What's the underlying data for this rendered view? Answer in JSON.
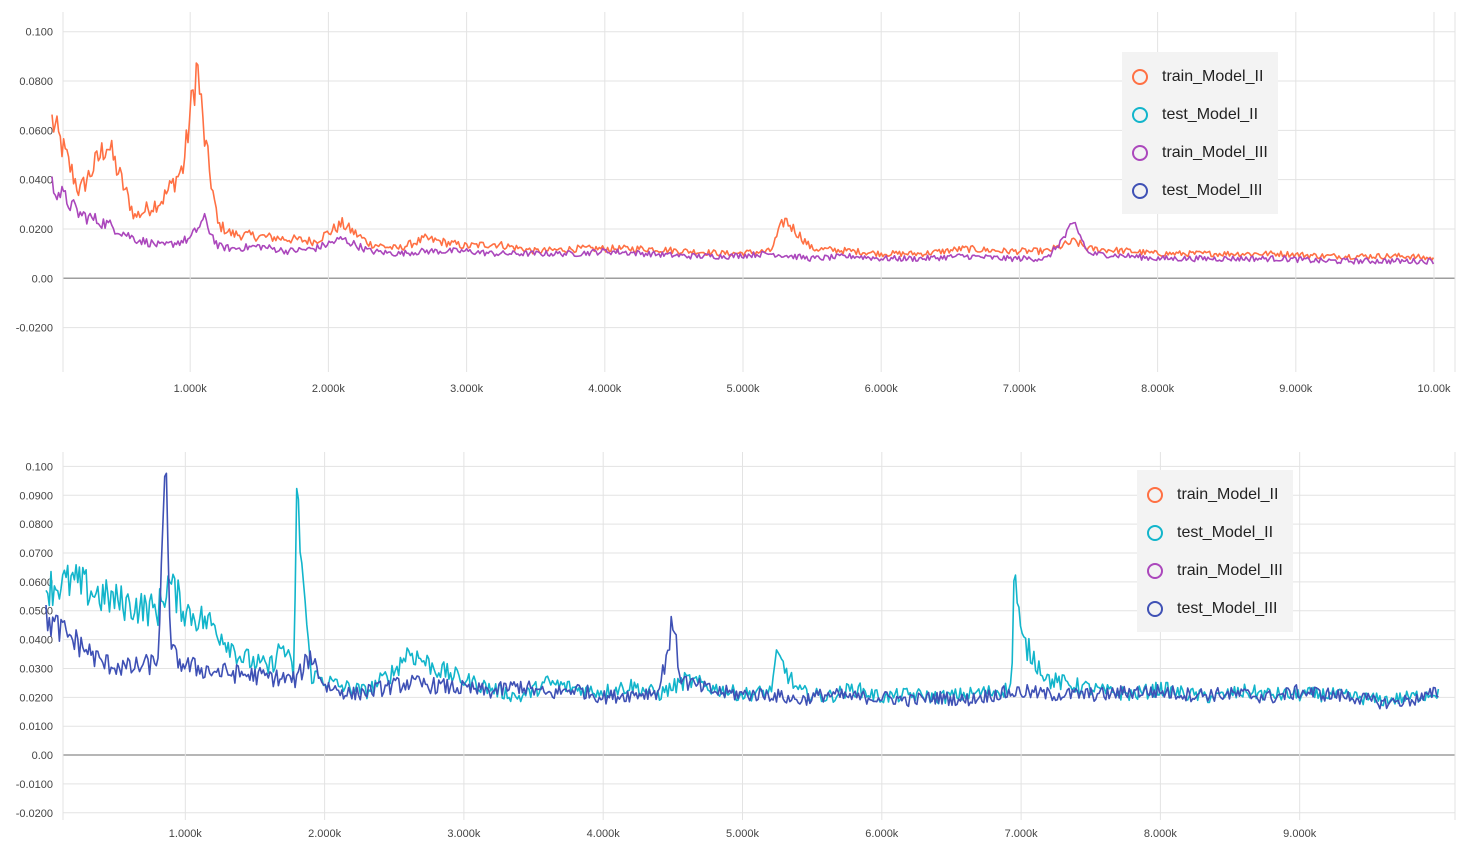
{
  "chart_data": [
    {
      "type": "line",
      "title": "",
      "xlabel": "",
      "ylabel": "",
      "xlim": [
        0,
        10000
      ],
      "ylim": [
        -0.038,
        0.108
      ],
      "grid": true,
      "legend_placement": "top-right",
      "x_ticks": [
        1000,
        2000,
        3000,
        4000,
        5000,
        6000,
        7000,
        8000,
        9000,
        10000
      ],
      "x_tick_labels": [
        "1.000k",
        "2.000k",
        "3.000k",
        "4.000k",
        "5.000k",
        "6.000k",
        "7.000k",
        "8.000k",
        "9.000k",
        "10.00k"
      ],
      "y_ticks": [
        0.1,
        0.08,
        0.06,
        0.04,
        0.02,
        0.0,
        -0.02
      ],
      "y_tick_labels": [
        "0.100",
        "0.0800",
        "0.0600",
        "0.0400",
        "0.0200",
        "0.00",
        "-0.0200"
      ],
      "legend": [
        {
          "name": "train_Model_II",
          "color": "#ff7043"
        },
        {
          "name": "test_Model_II",
          "color": "#12b5cb"
        },
        {
          "name": "train_Model_III",
          "color": "#ab47bc"
        },
        {
          "name": "test_Model_III",
          "color": "#3f51b5"
        }
      ],
      "series": [
        {
          "name": "train_Model_II",
          "color": "#ff7043",
          "x": [
            0,
            200,
            400,
            600,
            800,
            950,
            1050,
            1100,
            1200,
            1300,
            1500,
            1700,
            1900,
            2100,
            2300,
            2500,
            2700,
            3000,
            3200,
            3500,
            3800,
            4000,
            4300,
            4600,
            4900,
            5200,
            5300,
            5500,
            5800,
            6000,
            6300,
            6600,
            6900,
            7200,
            7400,
            7500,
            7800,
            8000,
            8300,
            8600,
            8900,
            9200,
            9500,
            9800,
            10000
          ],
          "y": [
            0.064,
            0.035,
            0.055,
            0.025,
            0.032,
            0.045,
            0.087,
            0.058,
            0.022,
            0.018,
            0.017,
            0.016,
            0.015,
            0.022,
            0.014,
            0.012,
            0.016,
            0.013,
            0.014,
            0.011,
            0.012,
            0.012,
            0.012,
            0.011,
            0.01,
            0.011,
            0.024,
            0.012,
            0.011,
            0.01,
            0.01,
            0.012,
            0.011,
            0.011,
            0.015,
            0.012,
            0.011,
            0.01,
            0.01,
            0.01,
            0.01,
            0.009,
            0.009,
            0.009,
            0.008
          ]
        },
        {
          "name": "train_Model_III",
          "color": "#ab47bc",
          "x": [
            0,
            200,
            400,
            600,
            800,
            1000,
            1100,
            1200,
            1300,
            1500,
            1700,
            1900,
            2100,
            2300,
            2500,
            2700,
            3000,
            3200,
            3500,
            3800,
            4000,
            4300,
            4600,
            4900,
            5200,
            5500,
            5800,
            6000,
            6300,
            6600,
            6900,
            7200,
            7400,
            7500,
            7800,
            8000,
            8300,
            8600,
            8900,
            9200,
            9500,
            9800,
            10000
          ],
          "y": [
            0.038,
            0.026,
            0.022,
            0.016,
            0.013,
            0.016,
            0.024,
            0.013,
            0.012,
            0.013,
            0.011,
            0.012,
            0.016,
            0.011,
            0.01,
            0.011,
            0.011,
            0.01,
            0.01,
            0.01,
            0.011,
            0.01,
            0.009,
            0.009,
            0.01,
            0.008,
            0.009,
            0.008,
            0.008,
            0.009,
            0.008,
            0.008,
            0.022,
            0.01,
            0.009,
            0.008,
            0.008,
            0.008,
            0.008,
            0.007,
            0.007,
            0.007,
            0.007
          ]
        }
      ]
    },
    {
      "type": "line",
      "title": "",
      "xlabel": "",
      "ylabel": "",
      "xlim": [
        0,
        10000
      ],
      "ylim": [
        -0.0225,
        0.105
      ],
      "grid": true,
      "legend_placement": "top-right",
      "x_ticks": [
        1000,
        2000,
        3000,
        4000,
        5000,
        6000,
        7000,
        8000,
        9000
      ],
      "x_tick_labels": [
        "1.000k",
        "2.000k",
        "3.000k",
        "4.000k",
        "5.000k",
        "6.000k",
        "7.000k",
        "8.000k",
        "9.000k"
      ],
      "y_ticks": [
        0.1,
        0.09,
        0.08,
        0.07,
        0.06,
        0.05,
        0.04,
        0.03,
        0.02,
        0.01,
        0.0,
        -0.01,
        -0.02
      ],
      "y_tick_labels": [
        "0.100",
        "0.0900",
        "0.0800",
        "0.0700",
        "0.0600",
        "0.0500",
        "0.0400",
        "0.0300",
        "0.0200",
        "0.0100",
        "0.00",
        "-0.0100",
        "-0.0200"
      ],
      "legend": [
        {
          "name": "train_Model_II",
          "color": "#ff7043"
        },
        {
          "name": "test_Model_II",
          "color": "#12b5cb"
        },
        {
          "name": "train_Model_III",
          "color": "#ab47bc"
        },
        {
          "name": "test_Model_III",
          "color": "#3f51b5"
        }
      ],
      "series": [
        {
          "name": "test_Model_II",
          "color": "#12b5cb",
          "x": [
            0,
            200,
            400,
            600,
            800,
            880,
            1000,
            1200,
            1400,
            1600,
            1700,
            1780,
            1800,
            1900,
            2100,
            2300,
            2500,
            2600,
            2800,
            3000,
            3200,
            3400,
            3600,
            3800,
            4000,
            4200,
            4400,
            4600,
            4800,
            5000,
            5200,
            5250,
            5400,
            5600,
            5800,
            6000,
            6200,
            6400,
            6600,
            6800,
            6930,
            6950,
            7000,
            7200,
            7400,
            7600,
            7800,
            8000,
            8200,
            8400,
            8600,
            8800,
            9000,
            9200,
            9400,
            9600,
            9800,
            9900,
            10000
          ],
          "y": [
            0.058,
            0.06,
            0.055,
            0.052,
            0.05,
            0.06,
            0.05,
            0.045,
            0.034,
            0.03,
            0.038,
            0.028,
            0.089,
            0.028,
            0.024,
            0.022,
            0.029,
            0.036,
            0.03,
            0.026,
            0.023,
            0.02,
            0.025,
            0.023,
            0.022,
            0.024,
            0.021,
            0.026,
            0.023,
            0.021,
            0.022,
            0.034,
            0.022,
            0.02,
            0.023,
            0.02,
            0.021,
            0.02,
            0.021,
            0.022,
            0.023,
            0.065,
            0.04,
            0.026,
            0.024,
            0.022,
            0.021,
            0.023,
            0.021,
            0.02,
            0.022,
            0.021,
            0.021,
            0.021,
            0.02,
            0.019,
            0.02,
            0.021,
            0.022
          ]
        },
        {
          "name": "test_Model_III",
          "color": "#3f51b5",
          "x": [
            0,
            200,
            400,
            600,
            800,
            860,
            900,
            1000,
            1200,
            1400,
            1600,
            1800,
            1900,
            2000,
            2200,
            2400,
            2600,
            2800,
            3000,
            3200,
            3400,
            3600,
            3800,
            4000,
            4200,
            4400,
            4500,
            4550,
            4600,
            4800,
            5000,
            5200,
            5400,
            5600,
            5800,
            6000,
            6200,
            6400,
            6600,
            6800,
            7000,
            7200,
            7400,
            7600,
            7800,
            8000,
            8200,
            8400,
            8600,
            8800,
            9000,
            9200,
            9400,
            9600,
            9800,
            9900,
            10000
          ],
          "y": [
            0.047,
            0.04,
            0.032,
            0.03,
            0.032,
            0.096,
            0.035,
            0.031,
            0.029,
            0.028,
            0.027,
            0.026,
            0.035,
            0.024,
            0.021,
            0.023,
            0.025,
            0.024,
            0.023,
            0.022,
            0.024,
            0.021,
            0.023,
            0.02,
            0.021,
            0.022,
            0.046,
            0.028,
            0.025,
            0.022,
            0.021,
            0.021,
            0.019,
            0.021,
            0.02,
            0.02,
            0.019,
            0.02,
            0.019,
            0.021,
            0.022,
            0.021,
            0.021,
            0.021,
            0.022,
            0.022,
            0.021,
            0.021,
            0.021,
            0.02,
            0.022,
            0.021,
            0.02,
            0.018,
            0.019,
            0.02,
            0.022
          ]
        }
      ]
    }
  ]
}
